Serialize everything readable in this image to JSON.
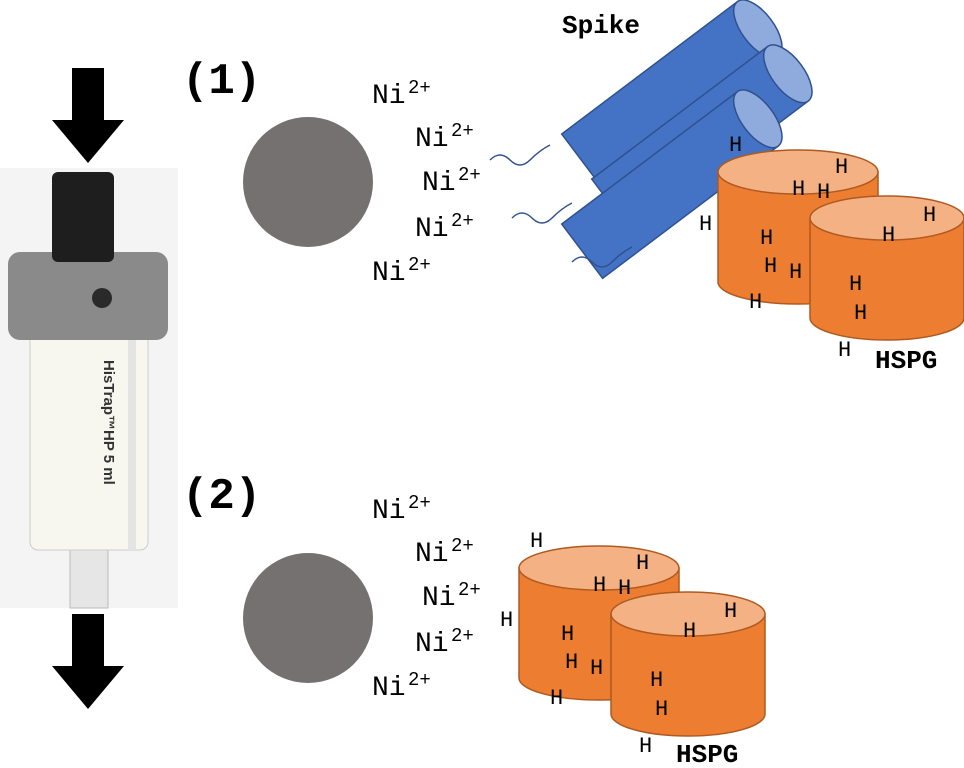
{
  "column": {
    "label": "HisTrap™HP   5 ml"
  },
  "panels": [
    {
      "label": "(1)",
      "ions": [
        {
          "symbol": "Ni",
          "charge": "2+"
        },
        {
          "symbol": "Ni",
          "charge": "2+"
        },
        {
          "symbol": "Ni",
          "charge": "2+"
        },
        {
          "symbol": "Ni",
          "charge": "2+"
        },
        {
          "symbol": "Ni",
          "charge": "2+"
        }
      ],
      "protein": "Spike",
      "receptor": "HSPG",
      "heparan_marks": [
        "H",
        "H",
        "H",
        "H",
        "H",
        "H",
        "H",
        "H",
        "H",
        "H",
        "H",
        "H",
        "H",
        "H"
      ]
    },
    {
      "label": "(2)",
      "ions": [
        {
          "symbol": "Ni",
          "charge": "2+"
        },
        {
          "symbol": "Ni",
          "charge": "2+"
        },
        {
          "symbol": "Ni",
          "charge": "2+"
        },
        {
          "symbol": "Ni",
          "charge": "2+"
        },
        {
          "symbol": "Ni",
          "charge": "2+"
        }
      ],
      "receptor": "HSPG",
      "heparan_marks": [
        "H",
        "H",
        "H",
        "H",
        "H",
        "H",
        "H",
        "H",
        "H",
        "H",
        "H",
        "H",
        "H",
        "H"
      ]
    }
  ]
}
